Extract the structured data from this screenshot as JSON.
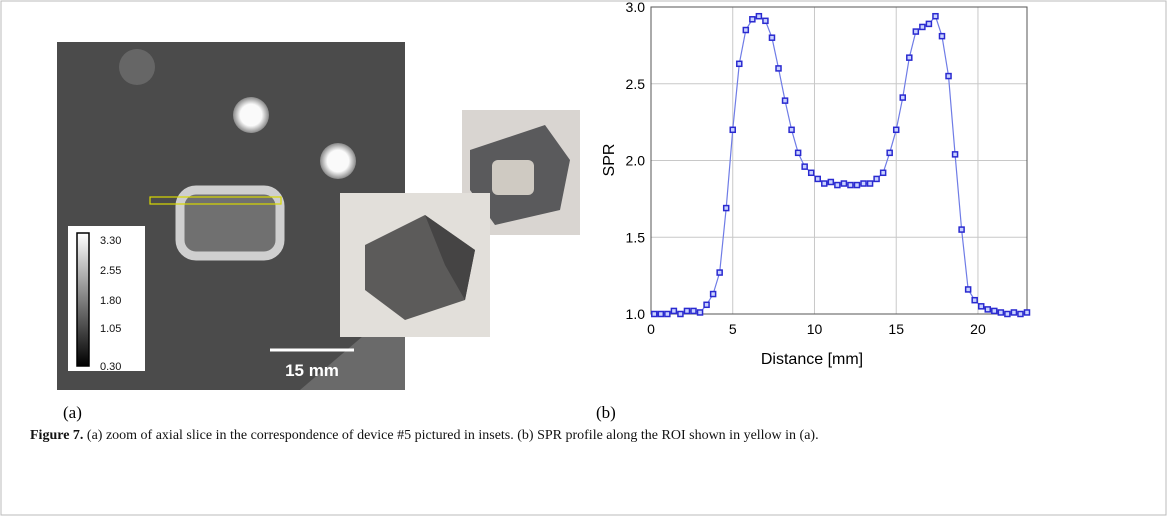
{
  "panel_a": {
    "label": "(a)",
    "colorbar_ticks": [
      "3.30",
      "2.55",
      "1.80",
      "1.05",
      "0.30"
    ],
    "scale_bar": "15 mm"
  },
  "panel_b": {
    "label": "(b)"
  },
  "caption": {
    "label": "Figure 7.",
    "text": "(a) zoom of axial slice in the correspondence of device #5 pictured in insets. (b) SPR profile along the ROI shown in yellow in (a)."
  },
  "chart_data": {
    "type": "line",
    "xlabel": "Distance [mm]",
    "ylabel": "SPR",
    "color": "#2a2ad0",
    "x": [
      0.2,
      0.6,
      1.0,
      1.4,
      1.8,
      2.2,
      2.6,
      3.0,
      3.4,
      3.8,
      4.2,
      4.6,
      5.0,
      5.4,
      5.8,
      6.2,
      6.6,
      7.0,
      7.4,
      7.8,
      8.2,
      8.6,
      9.0,
      9.4,
      9.8,
      10.2,
      10.6,
      11.0,
      11.4,
      11.8,
      12.2,
      12.6,
      13.0,
      13.4,
      13.8,
      14.2,
      14.6,
      15.0,
      15.4,
      15.8,
      16.2,
      16.6,
      17.0,
      17.4,
      17.8,
      18.2,
      18.6,
      19.0,
      19.4,
      19.8,
      20.2,
      20.6,
      21.0,
      21.4,
      21.8,
      22.2,
      22.6,
      23.0
    ],
    "values": [
      1.0,
      1.0,
      1.0,
      1.02,
      1.0,
      1.02,
      1.02,
      1.01,
      1.06,
      1.13,
      1.27,
      1.69,
      2.2,
      2.63,
      2.85,
      2.92,
      2.94,
      2.91,
      2.8,
      2.6,
      2.39,
      2.2,
      2.05,
      1.96,
      1.92,
      1.88,
      1.85,
      1.86,
      1.84,
      1.85,
      1.84,
      1.84,
      1.85,
      1.85,
      1.88,
      1.92,
      2.05,
      2.2,
      2.41,
      2.67,
      2.84,
      2.87,
      2.89,
      2.94,
      2.81,
      2.55,
      2.04,
      1.55,
      1.16,
      1.09,
      1.05,
      1.03,
      1.02,
      1.01,
      1.0,
      1.01,
      1.0,
      1.01
    ],
    "xlim": [
      0,
      23
    ],
    "xticks": [
      0,
      5,
      10,
      15,
      20
    ],
    "ylim": [
      1,
      3
    ],
    "yticks": [
      {
        "value": 1,
        "label": "1.0"
      },
      {
        "value": 1.5,
        "label": "1.5"
      },
      {
        "value": 2,
        "label": "2.0"
      },
      {
        "value": 2.5,
        "label": "2.5"
      },
      {
        "value": 3,
        "label": "3.0"
      }
    ],
    "grid": true
  }
}
